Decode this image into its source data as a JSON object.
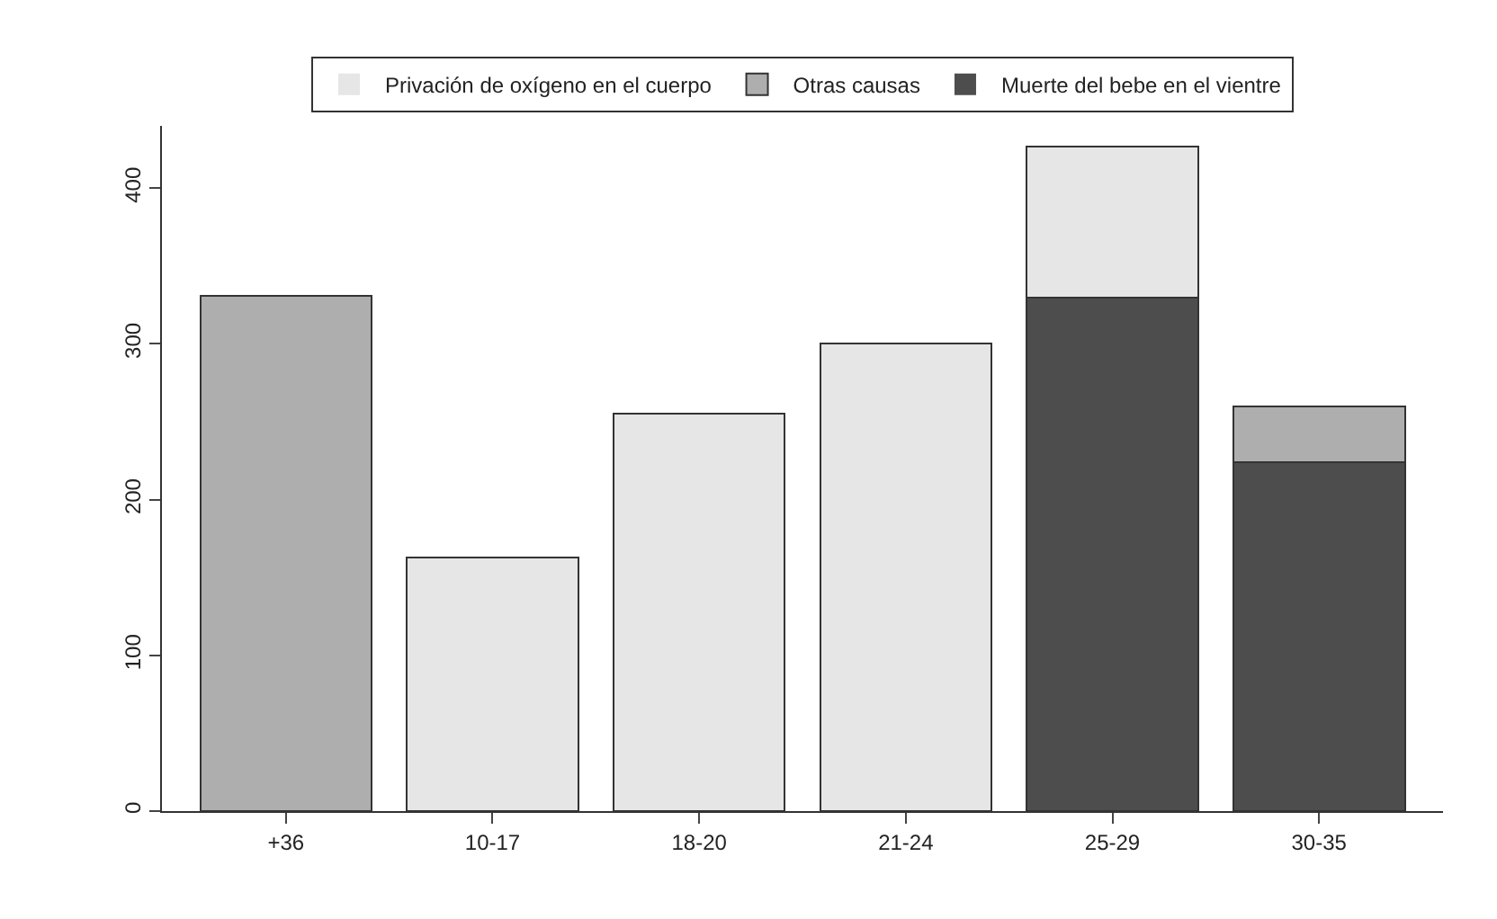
{
  "chart_data": {
    "type": "bar",
    "stacked": true,
    "categories": [
      "+36",
      "10-17",
      "18-20",
      "21-24",
      "25-29",
      "30-35"
    ],
    "series": [
      {
        "name": "Muerte del bebe en el vientre",
        "color": "#4d4d4d",
        "values": [
          0,
          0,
          0,
          0,
          330,
          224
        ]
      },
      {
        "name": "Otras causas",
        "color": "#aeaeae",
        "values": [
          331,
          0,
          0,
          0,
          0,
          36
        ]
      },
      {
        "name": "Privación de oxígeno en el cuerpo",
        "color": "#e6e6e6",
        "values": [
          0,
          163,
          255,
          300,
          97,
          0
        ]
      }
    ],
    "ylim": [
      0,
      440
    ],
    "yticks": [
      0,
      100,
      200,
      300,
      400
    ],
    "grid": false,
    "legend": "top"
  }
}
